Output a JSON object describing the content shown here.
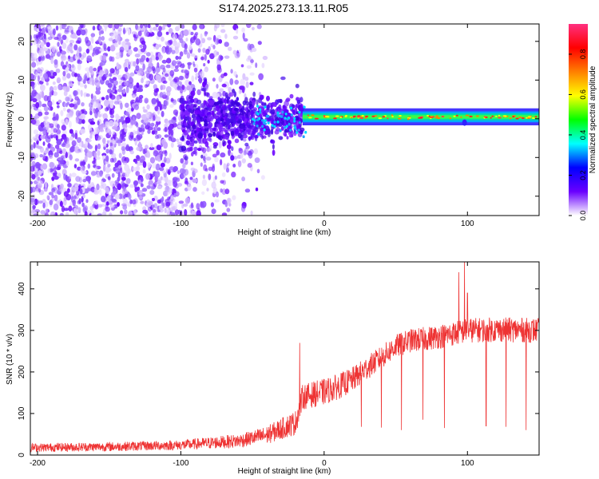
{
  "figure": {
    "title": "S174.2025.273.13.11.R05"
  },
  "chart_data": [
    {
      "type": "heatmap",
      "title": "S174.2025.273.13.11.R05",
      "xlabel": "Height of straight line (km)",
      "ylabel": "Frequency (Hz)",
      "xlim": [
        -205,
        150
      ],
      "ylim": [
        -25,
        24.5
      ],
      "xticks": [
        -200,
        -100,
        0,
        100
      ],
      "yticks": [
        -20,
        -10,
        0,
        10,
        20
      ],
      "x_tick_labels": [
        "-200",
        "-100",
        "0",
        "100"
      ],
      "y_tick_labels": [
        "-20",
        "-10",
        "0",
        "10",
        "20"
      ],
      "description_regions": [
        {
          "x_range": [
            -205,
            -60
          ],
          "content": "scattered purple blobs across all frequencies"
        },
        {
          "x_range": [
            -60,
            -15
          ],
          "content": "dense purple/blue cluster near 0 Hz with cyan spots"
        },
        {
          "x_range": [
            -15,
            150
          ],
          "content": "narrow band at ~0.5 Hz, green/cyan with red/yellow peaks"
        }
      ],
      "colorbar": {
        "label": "Normalized spectral amplitude",
        "range": [
          0.0,
          0.95
        ],
        "ticks": [
          0.0,
          0.2,
          0.4,
          0.6,
          0.8
        ],
        "tick_labels": [
          "0.0",
          "0.2",
          "0.4",
          "0.6",
          "0.8"
        ],
        "colormap": [
          "#ffffff",
          "#6a00ff",
          "#0000ff",
          "#00ffff",
          "#00ff00",
          "#ffff00",
          "#ff8000",
          "#ff0000",
          "#ff3080"
        ]
      }
    },
    {
      "type": "line",
      "xlabel": "Height of straight line (km)",
      "ylabel": "SNR (10 * v/v)",
      "xlim": [
        -205,
        150
      ],
      "ylim": [
        0,
        465
      ],
      "xticks": [
        -200,
        -100,
        0,
        100
      ],
      "yticks": [
        0,
        100,
        200,
        300,
        400
      ],
      "x_tick_labels": [
        "-200",
        "-100",
        "0",
        "100"
      ],
      "y_tick_labels": [
        "0",
        "100",
        "200",
        "300",
        "400"
      ],
      "color": "#ee3333",
      "baseline_profile": [
        [
          -205,
          18
        ],
        [
          -150,
          20
        ],
        [
          -100,
          24
        ],
        [
          -60,
          34
        ],
        [
          -40,
          48
        ],
        [
          -20,
          78
        ],
        [
          -15,
          140
        ],
        [
          0,
          152
        ],
        [
          10,
          165
        ],
        [
          20,
          182
        ],
        [
          30,
          210
        ],
        [
          40,
          235
        ],
        [
          50,
          262
        ],
        [
          60,
          275
        ],
        [
          75,
          282
        ],
        [
          90,
          292
        ],
        [
          100,
          300
        ],
        [
          120,
          302
        ],
        [
          150,
          300
        ]
      ],
      "noise_amplitude_profile": [
        [
          -205,
          10
        ],
        [
          -100,
          12
        ],
        [
          -50,
          18
        ],
        [
          -20,
          30
        ],
        [
          0,
          32
        ],
        [
          40,
          28
        ],
        [
          100,
          30
        ],
        [
          150,
          30
        ]
      ],
      "spikes": [
        {
          "x": -17,
          "y": 270
        },
        {
          "x": 26,
          "y": 68
        },
        {
          "x": 40,
          "y": 66
        },
        {
          "x": 54,
          "y": 60
        },
        {
          "x": 69,
          "y": 85
        },
        {
          "x": 84,
          "y": 65
        },
        {
          "x": 98,
          "y": 465
        },
        {
          "x": 94,
          "y": 440
        },
        {
          "x": 100,
          "y": 390
        },
        {
          "x": 113,
          "y": 70
        },
        {
          "x": 127,
          "y": 68
        },
        {
          "x": 141,
          "y": 60
        }
      ]
    }
  ]
}
